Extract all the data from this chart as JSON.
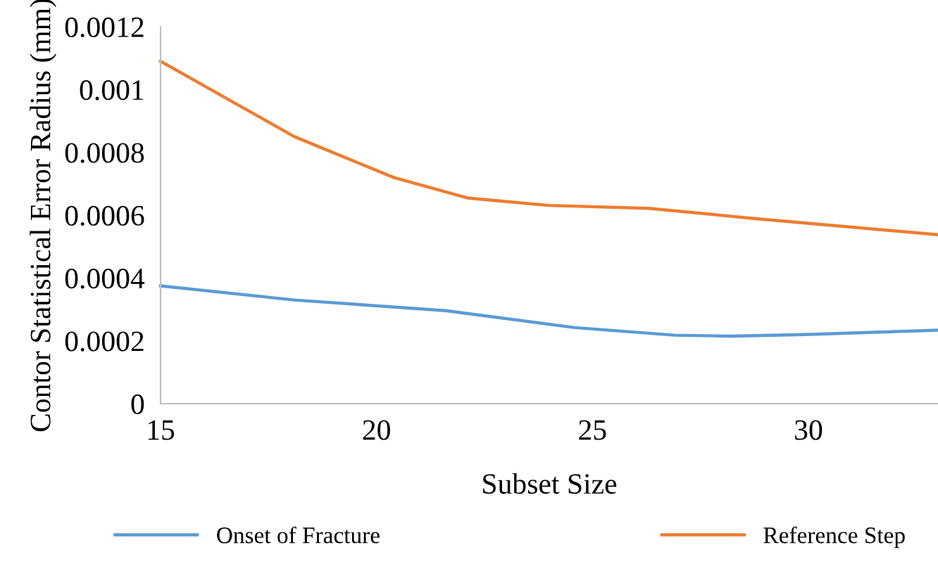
{
  "chart_data": {
    "type": "line",
    "xlabel": "Subset Size",
    "ylabel": "Contor Statistical Error Radius (mm)",
    "xlim": [
      15,
      33
    ],
    "xticks": [
      15,
      20,
      25,
      30
    ],
    "ylim": [
      0,
      0.0012
    ],
    "yticks": [
      0,
      0.0002,
      0.0004,
      0.0006,
      0.0008,
      0.001,
      0.0012
    ],
    "grid": false,
    "legend": "bottom",
    "marker": "none",
    "line_style": "solid",
    "series": [
      {
        "name": "Onset of Fracture",
        "color": "#5b9bd5",
        "x": [
          15,
          18.1,
          21.6,
          24.6,
          26.9,
          28.2,
          29.9,
          33
        ],
        "values": [
          0.000375,
          0.00033,
          0.000296,
          0.000242,
          0.000218,
          0.000215,
          0.00022,
          0.000234
        ]
      },
      {
        "name": "Reference Step",
        "color": "#ed7d31",
        "x": [
          15,
          18.1,
          20.4,
          22.1,
          24,
          26.3,
          28.7,
          33
        ],
        "values": [
          0.00109,
          0.00085,
          0.00072,
          0.000655,
          0.000631,
          0.000622,
          0.00059,
          0.000538
        ]
      }
    ]
  }
}
